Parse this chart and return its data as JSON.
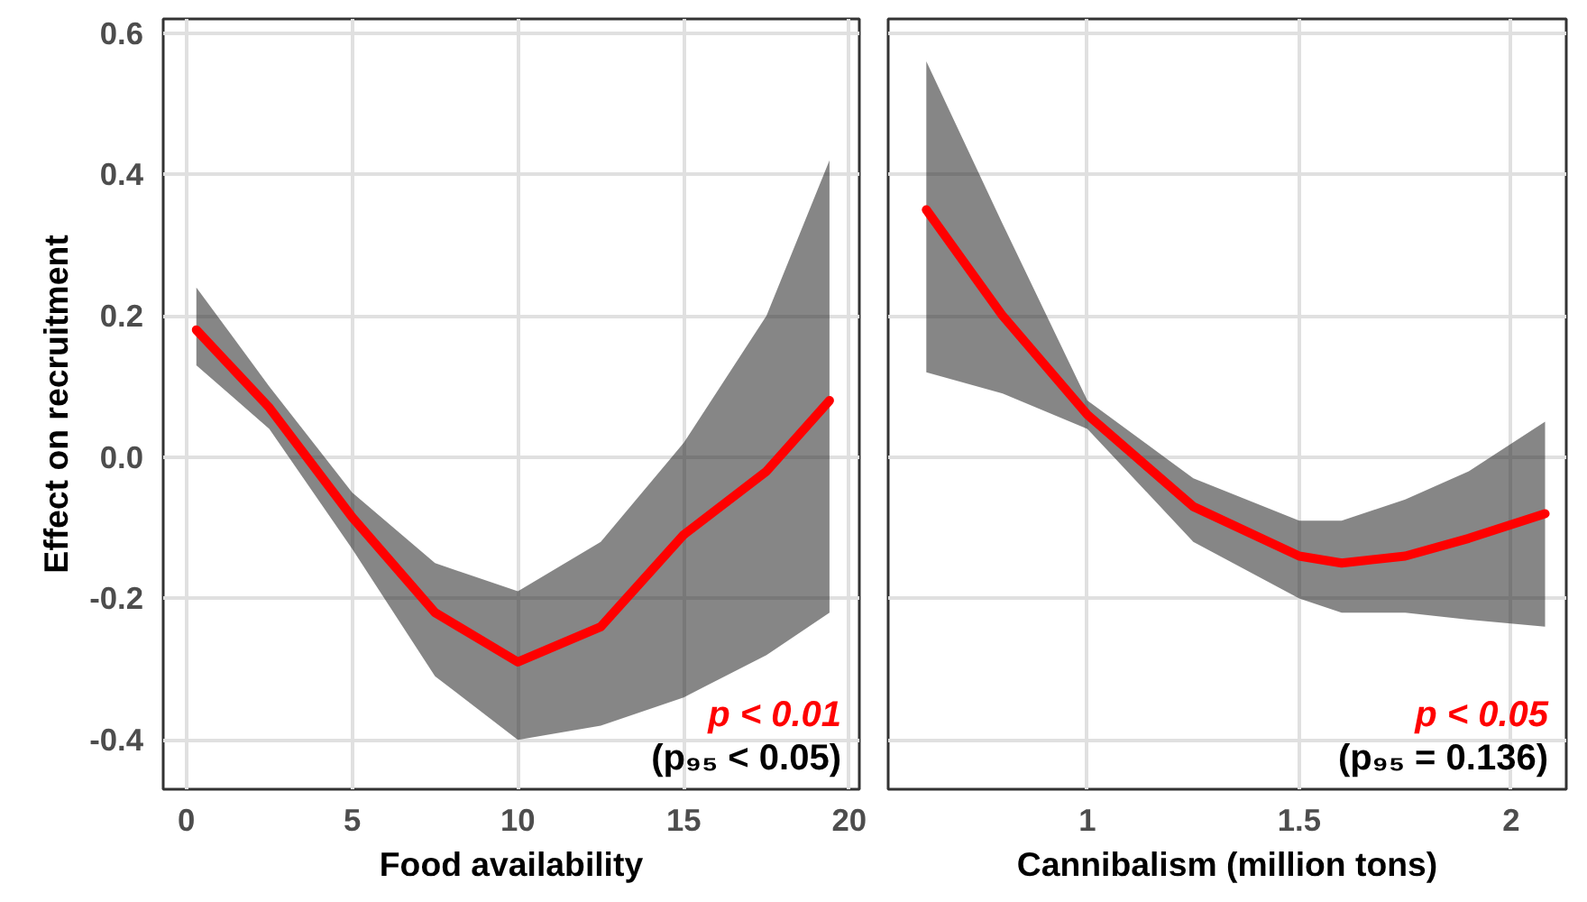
{
  "chart_data": [
    {
      "type": "line",
      "xlabel": "Food availability",
      "ylabel": "Effect on recruitment",
      "xlim": [
        -0.7,
        20.3
      ],
      "ylim": [
        -0.47,
        0.62
      ],
      "xticks": [
        0,
        5,
        10,
        15,
        20
      ],
      "yticks": [
        -0.4,
        -0.2,
        {
          "value": 0,
          "label": "0.0"
        },
        0.2,
        0.4,
        0.6
      ],
      "grid": true,
      "series": [
        {
          "color": "#ff0000",
          "x": [
            0.3,
            2.5,
            5,
            7.5,
            10,
            12.5,
            15,
            17.5,
            19.4
          ],
          "values": [
            0.18,
            0.07,
            -0.085,
            -0.22,
            -0.29,
            -0.24,
            -0.11,
            -0.02,
            0.08
          ],
          "lower": [
            0.13,
            0.04,
            -0.13,
            -0.31,
            -0.4,
            -0.38,
            -0.34,
            -0.28,
            -0.22
          ],
          "upper": [
            0.24,
            0.1,
            -0.05,
            -0.15,
            -0.19,
            -0.12,
            0.02,
            0.2,
            0.42
          ]
        }
      ],
      "annotations": [
        "p < 0.01",
        "(p₉₅ < 0.05)"
      ]
    },
    {
      "type": "line",
      "xlabel": "Cannibalism (million tons)",
      "xlim": [
        0.53,
        2.13
      ],
      "ylim": [
        -0.47,
        0.62
      ],
      "xticks": [
        1,
        1.5,
        2
      ],
      "yticks": [
        -0.4,
        -0.2,
        0,
        0.2,
        0.4,
        0.6
      ],
      "grid": true,
      "tick_labels": "x",
      "series": [
        {
          "color": "#ff0000",
          "x": [
            0.62,
            0.8,
            1.0,
            1.25,
            1.5,
            1.6,
            1.75,
            1.9,
            2.08
          ],
          "values": [
            0.35,
            0.2,
            0.06,
            -0.07,
            -0.14,
            -0.15,
            -0.14,
            -0.115,
            -0.08
          ],
          "lower": [
            0.12,
            0.09,
            0.04,
            -0.12,
            -0.2,
            -0.22,
            -0.22,
            -0.23,
            -0.24
          ],
          "upper": [
            0.56,
            0.33,
            0.08,
            -0.03,
            -0.09,
            -0.09,
            -0.06,
            -0.02,
            0.05
          ]
        }
      ],
      "annotations": [
        "p < 0.05",
        "(p₉₅ = 0.136)"
      ]
    }
  ]
}
